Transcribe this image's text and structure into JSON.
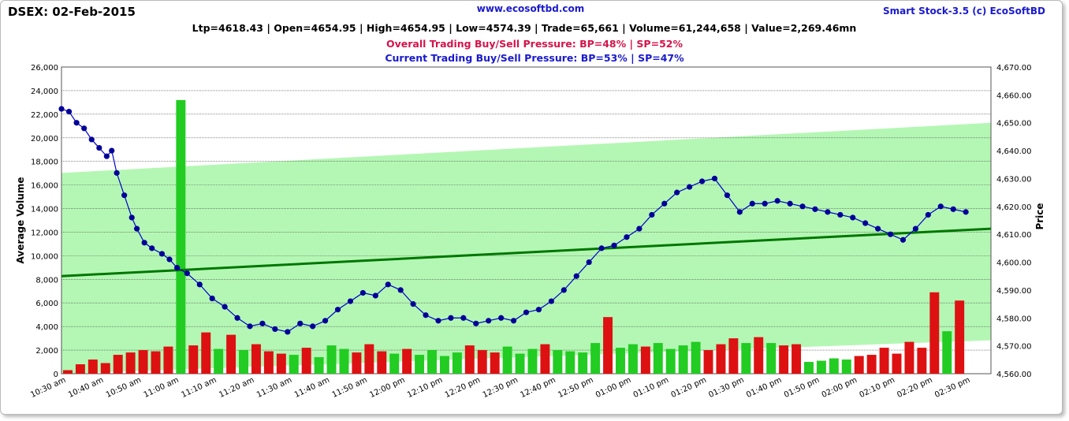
{
  "header": {
    "title": "DSEX: 02-Feb-2015",
    "website": "www.ecosoftbd.com",
    "brand": "Smart Stock-3.5 (c) EcoSoftBD",
    "stats": "Ltp=4618.43 | Open=4654.95 | High=4654.95 | Low=4574.39 | Trade=65,661 | Volume=61,244,658 | Value=2,269.46mn",
    "overall_pressure": "Overall Trading Buy/Sell Pressure: BP=48% | SP=52%",
    "current_pressure": "Current Trading Buy/Sell Pressure: BP=53% | SP=47%"
  },
  "colors": {
    "price_line": "#0000cc",
    "price_marker": "#000099",
    "trend_line": "#007700",
    "channel_fill": "#b4f7b4",
    "volume_up": "#22cc22",
    "volume_down": "#dd1111",
    "volume_flat": "#aaaaaa",
    "overall_text": "#d4144a",
    "current_text": "#1a1acc"
  },
  "chart_data": {
    "type": "line",
    "ylabel": "Average Volume",
    "y2label": "Price",
    "ylim": [
      0,
      26000
    ],
    "y2lim": [
      4560,
      4670
    ],
    "yticks": [
      "0",
      "2,000",
      "4,000",
      "6,000",
      "8,000",
      "10,000",
      "12,000",
      "14,000",
      "16,000",
      "18,000",
      "20,000",
      "22,000",
      "24,000",
      "26,000"
    ],
    "y2ticks": [
      "4,560.00",
      "4,570.00",
      "4,580.00",
      "4,590.00",
      "4,600.00",
      "4,610.00",
      "4,620.00",
      "4,630.00",
      "4,640.00",
      "4,650.00",
      "4,660.00",
      "4,670.00"
    ],
    "xticks": [
      "10:30 am",
      "10:40 am",
      "10:50 am",
      "11:00 am",
      "11:10 am",
      "11:20 am",
      "11:30 am",
      "11:40 am",
      "11:50 am",
      "12:00 pm",
      "12:10 pm",
      "12:20 pm",
      "12:30 pm",
      "12:40 pm",
      "12:50 pm",
      "01:00 pm",
      "01:10 pm",
      "01:20 pm",
      "01:30 pm",
      "01:40 pm",
      "01:50 pm",
      "02:00 pm",
      "02:10 pm",
      "02:20 pm",
      "02:30 pm"
    ],
    "grid": true,
    "price_series": {
      "name": "Price",
      "x_minutes": [
        0,
        3,
        6,
        9,
        12,
        15,
        18,
        20,
        22,
        25,
        28,
        30,
        33,
        36,
        40,
        43,
        46,
        50,
        55,
        60,
        65,
        70,
        75,
        80,
        85,
        90,
        95,
        100,
        105,
        110,
        115,
        120,
        125,
        130,
        135,
        140,
        145,
        150,
        155,
        160,
        165,
        170,
        175,
        180,
        185,
        190,
        195,
        200,
        205,
        210,
        215,
        220,
        225,
        230,
        235,
        240,
        245,
        250,
        255,
        260,
        265,
        270,
        275,
        280,
        285,
        290,
        295,
        300,
        305,
        310,
        315,
        320,
        325,
        330,
        335,
        340,
        345,
        350,
        355,
        360
      ],
      "values": [
        4655,
        4654,
        4650,
        4648,
        4644,
        4641,
        4638,
        4640,
        4632,
        4624,
        4616,
        4612,
        4607,
        4605,
        4603,
        4601,
        4598,
        4596,
        4592,
        4587,
        4584,
        4580,
        4577,
        4578,
        4576,
        4575,
        4578,
        4577,
        4579,
        4583,
        4586,
        4589,
        4588,
        4592,
        4590,
        4585,
        4581,
        4579,
        4580,
        4580,
        4578,
        4579,
        4580,
        4579,
        4582,
        4583,
        4586,
        4590,
        4595,
        4600,
        4605,
        4606,
        4609,
        4612,
        4617,
        4621,
        4625,
        4627,
        4629,
        4630,
        4624,
        4618,
        4621,
        4621,
        4622,
        4621,
        4620,
        4619,
        4618,
        4617,
        4616,
        4614,
        4612,
        4610,
        4608,
        4612,
        4617,
        4620,
        4619,
        4618
      ]
    },
    "volume_series": {
      "name": "Average Volume",
      "x_minutes": [
        0,
        5,
        10,
        15,
        20,
        25,
        30,
        35,
        40,
        45,
        50,
        55,
        60,
        65,
        70,
        75,
        80,
        85,
        90,
        95,
        100,
        105,
        110,
        115,
        120,
        125,
        130,
        135,
        140,
        145,
        150,
        155,
        160,
        165,
        170,
        175,
        180,
        185,
        190,
        195,
        200,
        205,
        210,
        215,
        220,
        225,
        230,
        235,
        240,
        245,
        250,
        255,
        260,
        265,
        270,
        275,
        280,
        285,
        290,
        295,
        300,
        305,
        310,
        315,
        320,
        325,
        330,
        335,
        340,
        345,
        350,
        355
      ],
      "values": [
        300,
        800,
        1200,
        900,
        1600,
        1800,
        2000,
        1900,
        2300,
        23200,
        2400,
        3500,
        2100,
        3300,
        2000,
        2500,
        1900,
        1700,
        1600,
        2200,
        1400,
        2400,
        2100,
        1800,
        2500,
        1900,
        1700,
        2100,
        1600,
        2000,
        1500,
        1800,
        2400,
        2000,
        1800,
        2300,
        1700,
        2100,
        2500,
        2000,
        1900,
        1800,
        2600,
        4800,
        2200,
        2500,
        2300,
        2600,
        2100,
        2400,
        2700,
        2000,
        2500,
        3000,
        2600,
        3100,
        2600,
        2400,
        2500,
        1000,
        1100,
        1300,
        1200,
        1500,
        1600,
        2200,
        1700,
        2700,
        2200,
        6900,
        3600,
        6200
      ],
      "direction": [
        "down",
        "down",
        "down",
        "down",
        "down",
        "down",
        "down",
        "down",
        "down",
        "up",
        "down",
        "down",
        "up",
        "down",
        "up",
        "down",
        "down",
        "down",
        "up",
        "down",
        "up",
        "up",
        "up",
        "down",
        "down",
        "down",
        "up",
        "down",
        "up",
        "up",
        "up",
        "up",
        "down",
        "down",
        "down",
        "up",
        "up",
        "up",
        "down",
        "up",
        "up",
        "up",
        "up",
        "down",
        "up",
        "up",
        "down",
        "up",
        "up",
        "up",
        "up",
        "down",
        "down",
        "down",
        "up",
        "down",
        "up",
        "down",
        "down",
        "up",
        "up",
        "up",
        "up",
        "down",
        "down",
        "down",
        "down",
        "down",
        "down",
        "down",
        "up",
        "down"
      ]
    },
    "trend_line": {
      "name": "Trend",
      "x_minutes": [
        0,
        370
      ],
      "values": [
        4595,
        4612
      ]
    },
    "channel": {
      "upper": [
        4632,
        4650
      ],
      "lower": [
        4560,
        4572
      ]
    }
  }
}
